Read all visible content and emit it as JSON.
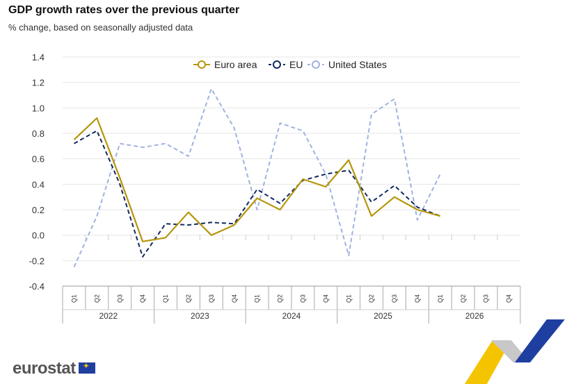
{
  "header": {
    "title": "GDP growth rates over the previous quarter",
    "subtitle": "% change, based on seasonally adjusted data"
  },
  "brand": {
    "name": "eurostat"
  },
  "chart_data": {
    "type": "line",
    "title": "GDP growth rates over the previous quarter",
    "subtitle": "% change, based on seasonally adjusted data",
    "xlabel": "",
    "ylabel": "",
    "ylim": [
      -0.4,
      1.4
    ],
    "yticks": [
      "1.4",
      "1.2",
      "1.0",
      "0.8",
      "0.6",
      "0.4",
      "0.2",
      "0.0",
      "-0.2",
      "-0.4"
    ],
    "grid": true,
    "legend_position": "top-center",
    "quarters": [
      "Q1",
      "Q2",
      "Q3",
      "Q4",
      "Q1",
      "Q2",
      "Q3",
      "Q4",
      "Q1",
      "Q2",
      "Q3",
      "Q4",
      "Q1",
      "Q2",
      "Q3",
      "Q4",
      "Q1",
      "Q2",
      "Q3",
      "Q4"
    ],
    "years": [
      "2022",
      "2023",
      "2024",
      "2025",
      "2026"
    ],
    "series": [
      {
        "name": "Euro area",
        "color": "#b5960b",
        "dash": "solid",
        "values": [
          0.75,
          0.92,
          0.45,
          -0.05,
          -0.02,
          0.18,
          0.0,
          0.08,
          0.29,
          0.2,
          0.44,
          0.38,
          0.59,
          0.15,
          0.3,
          0.2,
          0.15,
          null,
          null,
          null
        ]
      },
      {
        "name": "EU",
        "color": "#10295e",
        "dash": "dashed",
        "values": [
          0.72,
          0.82,
          0.4,
          -0.17,
          0.09,
          0.08,
          0.1,
          0.09,
          0.36,
          0.25,
          0.43,
          0.48,
          0.51,
          0.26,
          0.39,
          0.22,
          0.15,
          null,
          null,
          null
        ]
      },
      {
        "name": "United States",
        "color": "#9fb2e0",
        "dash": "dashed",
        "values": [
          -0.25,
          0.15,
          0.72,
          0.69,
          0.72,
          0.62,
          1.15,
          0.84,
          0.2,
          0.88,
          0.82,
          0.48,
          -0.16,
          0.95,
          1.07,
          0.12,
          0.48,
          null,
          null,
          null
        ]
      }
    ]
  }
}
